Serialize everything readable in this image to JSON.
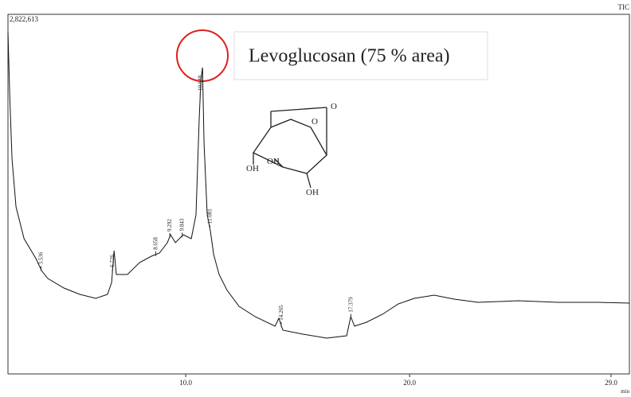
{
  "chart_data": {
    "type": "line",
    "channel": "TIC",
    "xlabel": "min",
    "annotation": "Levoglucosan (75 % area)",
    "structure_labels": [
      "O",
      "O",
      "OH",
      "OH",
      "OH"
    ],
    "color": "#111111",
    "xlim": [
      2.06,
      29.82
    ],
    "ylim": [
      0,
      2822613
    ],
    "xticks": [
      {
        "value": 10,
        "label": "10.0"
      },
      {
        "value": 20,
        "label": "20.0"
      },
      {
        "value": 29,
        "label": "29.0"
      }
    ],
    "yticks": [
      {
        "value": 2822613,
        "label": "2,822,613"
      }
    ],
    "x": [
      2.06,
      2.14,
      2.24,
      2.42,
      2.78,
      3.31,
      3.56,
      3.84,
      4.56,
      5.27,
      5.98,
      6.51,
      6.69,
      6.8,
      6.9,
      7.4,
      7.94,
      8.47,
      8.83,
      9.18,
      9.32,
      9.54,
      9.89,
      10.25,
      10.46,
      10.6,
      10.68,
      10.75,
      10.82,
      10.96,
      11.1,
      11.25,
      11.49,
      11.85,
      12.38,
      13.1,
      13.99,
      14.16,
      14.34,
      15.23,
      16.3,
      17.19,
      17.37,
      17.54,
      18.08,
      18.79,
      19.5,
      20.21,
      21.1,
      21.99,
      23.06,
      24.84,
      26.62,
      28.4,
      29.82
    ],
    "values": [
      2685350,
      2185750,
      1686150,
      1311450,
      1061650,
      905525,
      811850,
      749400,
      674460,
      624500,
      593275,
      624500,
      718175,
      967975,
      780625,
      780625,
      874300,
      924260,
      949240,
      1030425,
      1092875,
      1030425,
      1092875,
      1061650,
      1249000,
      1998400,
      2310650,
      2404325,
      1811050,
      1249000,
      1124100,
      936750,
      780625,
      655725,
      530825,
      449640,
      374700,
      437150,
      343475,
      312250,
      281025,
      299760,
      449640,
      374700,
      405925,
      468375,
      549560,
      593275,
      618255,
      587030,
      562050,
      574540,
      562050,
      562050,
      555805
    ],
    "peak_labels": [
      3.536,
      6.726,
      8.658,
      9.292,
      9.843,
      10.648,
      11.081,
      14.265,
      17.379
    ]
  }
}
